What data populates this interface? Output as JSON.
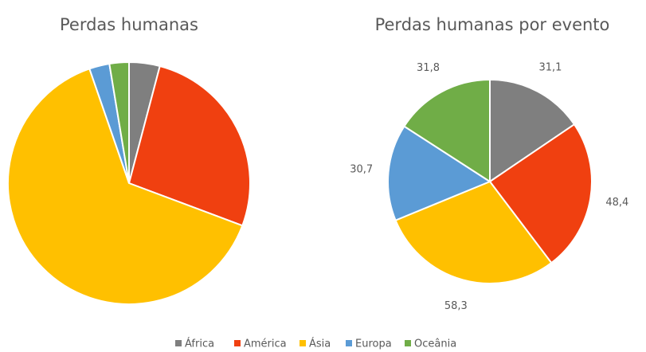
{
  "chart_data": [
    {
      "type": "pie",
      "title": "Perdas humanas",
      "categories": [
        "África",
        "América",
        "Ásia",
        "Europa",
        "Oceânia"
      ],
      "values": [
        4.1,
        26.6,
        64,
        2.7,
        2.6
      ],
      "colors": [
        "#7f7f7f",
        "#f04010",
        "#ffc000",
        "#5b9bd5",
        "#70ad47"
      ]
    },
    {
      "type": "pie",
      "title": "Perdas humanas por evento",
      "categories": [
        "África",
        "América",
        "Ásia",
        "Europa",
        "Oceânia"
      ],
      "values": [
        31.1,
        48.4,
        58.3,
        30.7,
        31.8
      ],
      "value_labels": [
        "31,1",
        "48,4",
        "58,3",
        "30,7",
        "31,8"
      ],
      "colors": [
        "#7f7f7f",
        "#f04010",
        "#ffc000",
        "#5b9bd5",
        "#70ad47"
      ]
    }
  ]
}
